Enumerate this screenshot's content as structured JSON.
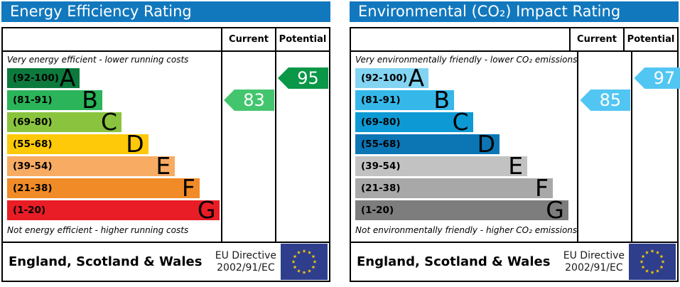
{
  "chart_data": [
    {
      "type": "bar",
      "id": "energy-efficiency",
      "title": "Energy Efficiency Rating",
      "header_color": "#1278be",
      "columns": {
        "current": "Current",
        "potential": "Potential"
      },
      "top_note": "Very energy efficient - lower running costs",
      "bottom_note": "Not energy efficient - higher running costs",
      "bands": [
        {
          "letter": "A",
          "range": "(92-100)",
          "min": 92,
          "max": 100,
          "color": "#0c7a3d",
          "width_pct": 34
        },
        {
          "letter": "B",
          "range": "(81-91)",
          "min": 81,
          "max": 91,
          "color": "#2bb459",
          "width_pct": 44.5
        },
        {
          "letter": "C",
          "range": "(69-80)",
          "min": 69,
          "max": 80,
          "color": "#8ac43f",
          "width_pct": 53.5
        },
        {
          "letter": "D",
          "range": "(55-68)",
          "min": 55,
          "max": 68,
          "color": "#fdc908",
          "width_pct": 66
        },
        {
          "letter": "E",
          "range": "(39-54)",
          "min": 39,
          "max": 54,
          "color": "#f7ab63",
          "width_pct": 78.5
        },
        {
          "letter": "F",
          "range": "(21-38)",
          "min": 21,
          "max": 38,
          "color": "#f08b28",
          "width_pct": 90
        },
        {
          "letter": "G",
          "range": "(1-20)",
          "min": 1,
          "max": 20,
          "color": "#e91d25",
          "width_pct": 99.5
        }
      ],
      "current": {
        "value": "83",
        "band": "B",
        "band_index": 1,
        "color": "#43c56e"
      },
      "potential": {
        "value": "95",
        "band": "A",
        "band_index": 0,
        "color": "#0a9748"
      },
      "footer": {
        "region": "England, Scotland & Wales",
        "directive_line1": "EU Directive",
        "directive_line2": "2002/91/EC",
        "flag_bg": "#2e3e8c",
        "flag_star_color": "#ffcc00"
      }
    },
    {
      "type": "bar",
      "id": "environmental-impact",
      "title": "Environmental (CO₂) Impact Rating",
      "header_color": "#1278be",
      "columns": {
        "current": "Current",
        "potential": "Potential"
      },
      "top_note": "Very environmentally friendly - lower CO₂ emissions",
      "bottom_note": "Not environmentally friendly - higher CO₂ emissions",
      "bands": [
        {
          "letter": "A",
          "range": "(92-100)",
          "min": 92,
          "max": 100,
          "color": "#82d4f2",
          "width_pct": 33
        },
        {
          "letter": "B",
          "range": "(81-91)",
          "min": 81,
          "max": 91,
          "color": "#35b8e9",
          "width_pct": 44.5
        },
        {
          "letter": "C",
          "range": "(69-80)",
          "min": 69,
          "max": 80,
          "color": "#0d9ad4",
          "width_pct": 53
        },
        {
          "letter": "D",
          "range": "(55-68)",
          "min": 55,
          "max": 68,
          "color": "#0c76b5",
          "width_pct": 65
        },
        {
          "letter": "E",
          "range": "(39-54)",
          "min": 39,
          "max": 54,
          "color": "#c2c2c2",
          "width_pct": 77.5
        },
        {
          "letter": "F",
          "range": "(21-38)",
          "min": 21,
          "max": 38,
          "color": "#a8a8a8",
          "width_pct": 89
        },
        {
          "letter": "G",
          "range": "(1-20)",
          "min": 1,
          "max": 20,
          "color": "#7d7d7d",
          "width_pct": 96
        }
      ],
      "current": {
        "value": "85",
        "band": "B",
        "band_index": 1,
        "color": "#52c6f2"
      },
      "potential": {
        "value": "97",
        "band": "A",
        "band_index": 0,
        "color": "#52c6f2"
      },
      "footer": {
        "region": "England, Scotland & Wales",
        "directive_line1": "EU Directive",
        "directive_line2": "2002/91/EC",
        "flag_bg": "#2e3e8c",
        "flag_star_color": "#ffcc00"
      }
    }
  ]
}
